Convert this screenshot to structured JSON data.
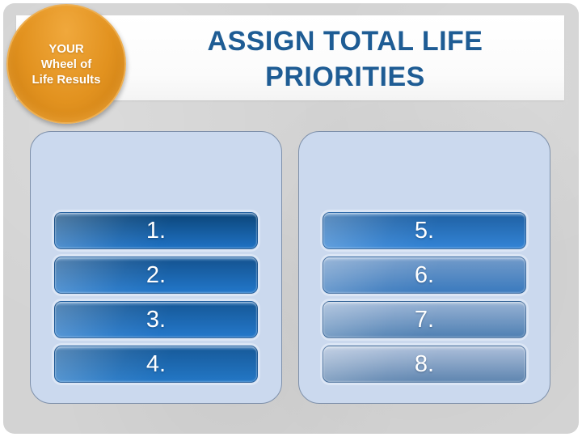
{
  "badge": {
    "line1": "YOUR",
    "line2": "Wheel of",
    "line3": "Life Results"
  },
  "title": {
    "line1": "ASSIGN TOTAL LIFE",
    "line2": "PRIORITIES"
  },
  "panels": [
    {
      "name": "priorities-1-4",
      "buttons": [
        {
          "label": "1.",
          "gloss": "#4E83B8",
          "top": "#0E4A81",
          "bottom": "#1F72C4"
        },
        {
          "label": "2.",
          "gloss": "#5A8FC4",
          "top": "#155695",
          "bottom": "#2277CA"
        },
        {
          "label": "3.",
          "gloss": "#5A90C6",
          "top": "#175B9C",
          "bottom": "#2478CB"
        },
        {
          "label": "4.",
          "gloss": "#5C91C6",
          "top": "#185D9E",
          "bottom": "#2377C6"
        }
      ]
    },
    {
      "name": "priorities-5-8",
      "buttons": [
        {
          "label": "5.",
          "gloss": "#6FA0D2",
          "top": "#2164A8",
          "bottom": "#3384D6"
        },
        {
          "label": "6.",
          "gloss": "#9DB9DC",
          "top": "#6C97C8",
          "bottom": "#3A7ABE"
        },
        {
          "label": "7.",
          "gloss": "#B3C6DE",
          "top": "#8FACD0",
          "bottom": "#4F80B3"
        },
        {
          "label": "8.",
          "gloss": "#C2D0E2",
          "top": "#A3B8D5",
          "bottom": "#5E85B0"
        }
      ]
    }
  ],
  "colors": {
    "title_color": "#1E5C94",
    "slide_bg": "#D3D3D3",
    "panel_bg": "#CBD9EE",
    "panel_border": "#7E90AA",
    "badge_border": "#EDAF52",
    "badge_grad_top": "#F0A83C",
    "badge_grad_mid": "#E2921F",
    "badge_grad_bottom": "#C67A12",
    "button_halo": "#DCE6F5",
    "button_text": "#FFFFFF"
  }
}
